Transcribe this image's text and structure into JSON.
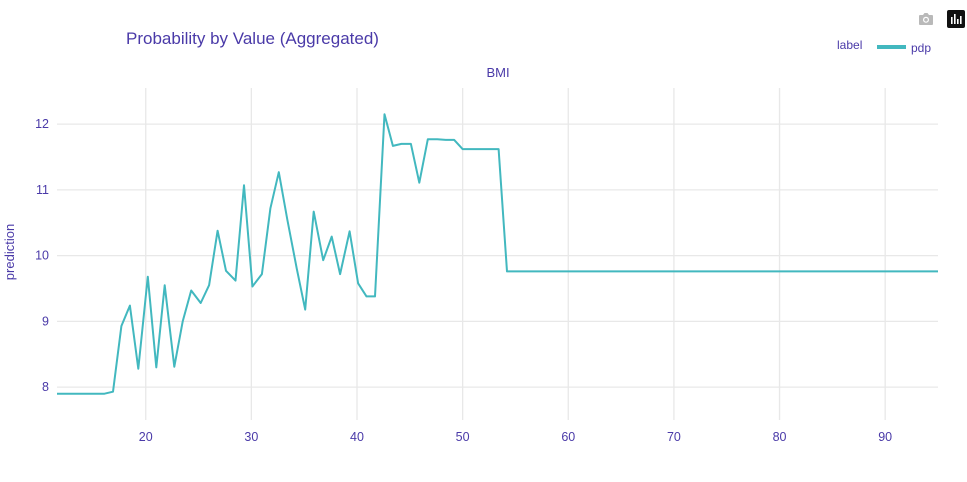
{
  "toolbar": {
    "camera_icon": "camera-icon",
    "plotly_icon": "plotly-logo-icon"
  },
  "chart_data": {
    "type": "line",
    "title": "Probability by Value (Aggregated)",
    "subtitle": "BMI",
    "xlabel": "",
    "ylabel": "prediction",
    "xlim": [
      11.6,
      95
    ],
    "ylim": [
      7.5,
      12.55
    ],
    "xticks": [
      20,
      30,
      40,
      50,
      60,
      70,
      80,
      90
    ],
    "yticks": [
      8,
      9,
      10,
      11,
      12
    ],
    "grid": true,
    "legend": {
      "title": "label",
      "position": "top-right"
    },
    "color": "#42b8bf",
    "series": [
      {
        "name": "pdp",
        "x": [
          11.6,
          12.4,
          13.3,
          14.1,
          14.9,
          15.7,
          16.1,
          16.9,
          17.7,
          18.5,
          19.3,
          20.2,
          21.0,
          21.8,
          22.7,
          23.5,
          24.3,
          25.2,
          26.0,
          26.8,
          27.6,
          28.5,
          29.3,
          30.1,
          31.0,
          31.8,
          32.6,
          33.4,
          34.3,
          35.1,
          35.9,
          36.8,
          37.6,
          38.4,
          39.3,
          40.1,
          40.9,
          41.7,
          42.6,
          43.4,
          44.2,
          45.1,
          45.9,
          46.7,
          47.6,
          48.4,
          49.2,
          50.0,
          50.9,
          51.7,
          52.5,
          53.4,
          54.2,
          55.0,
          95.0
        ],
        "values": [
          7.9,
          7.9,
          7.9,
          7.9,
          7.9,
          7.9,
          7.9,
          7.93,
          8.93,
          9.24,
          8.28,
          9.68,
          8.3,
          9.55,
          8.31,
          9.0,
          9.47,
          9.28,
          9.55,
          10.38,
          9.77,
          9.62,
          11.07,
          9.53,
          9.72,
          10.72,
          11.27,
          10.55,
          9.8,
          9.18,
          10.67,
          9.93,
          10.29,
          9.72,
          10.37,
          9.58,
          9.38,
          9.38,
          12.15,
          11.67,
          11.7,
          11.7,
          11.11,
          11.77,
          11.77,
          11.76,
          11.76,
          11.62,
          11.62,
          11.62,
          11.62,
          11.62,
          9.76,
          9.76,
          9.76
        ]
      }
    ]
  }
}
